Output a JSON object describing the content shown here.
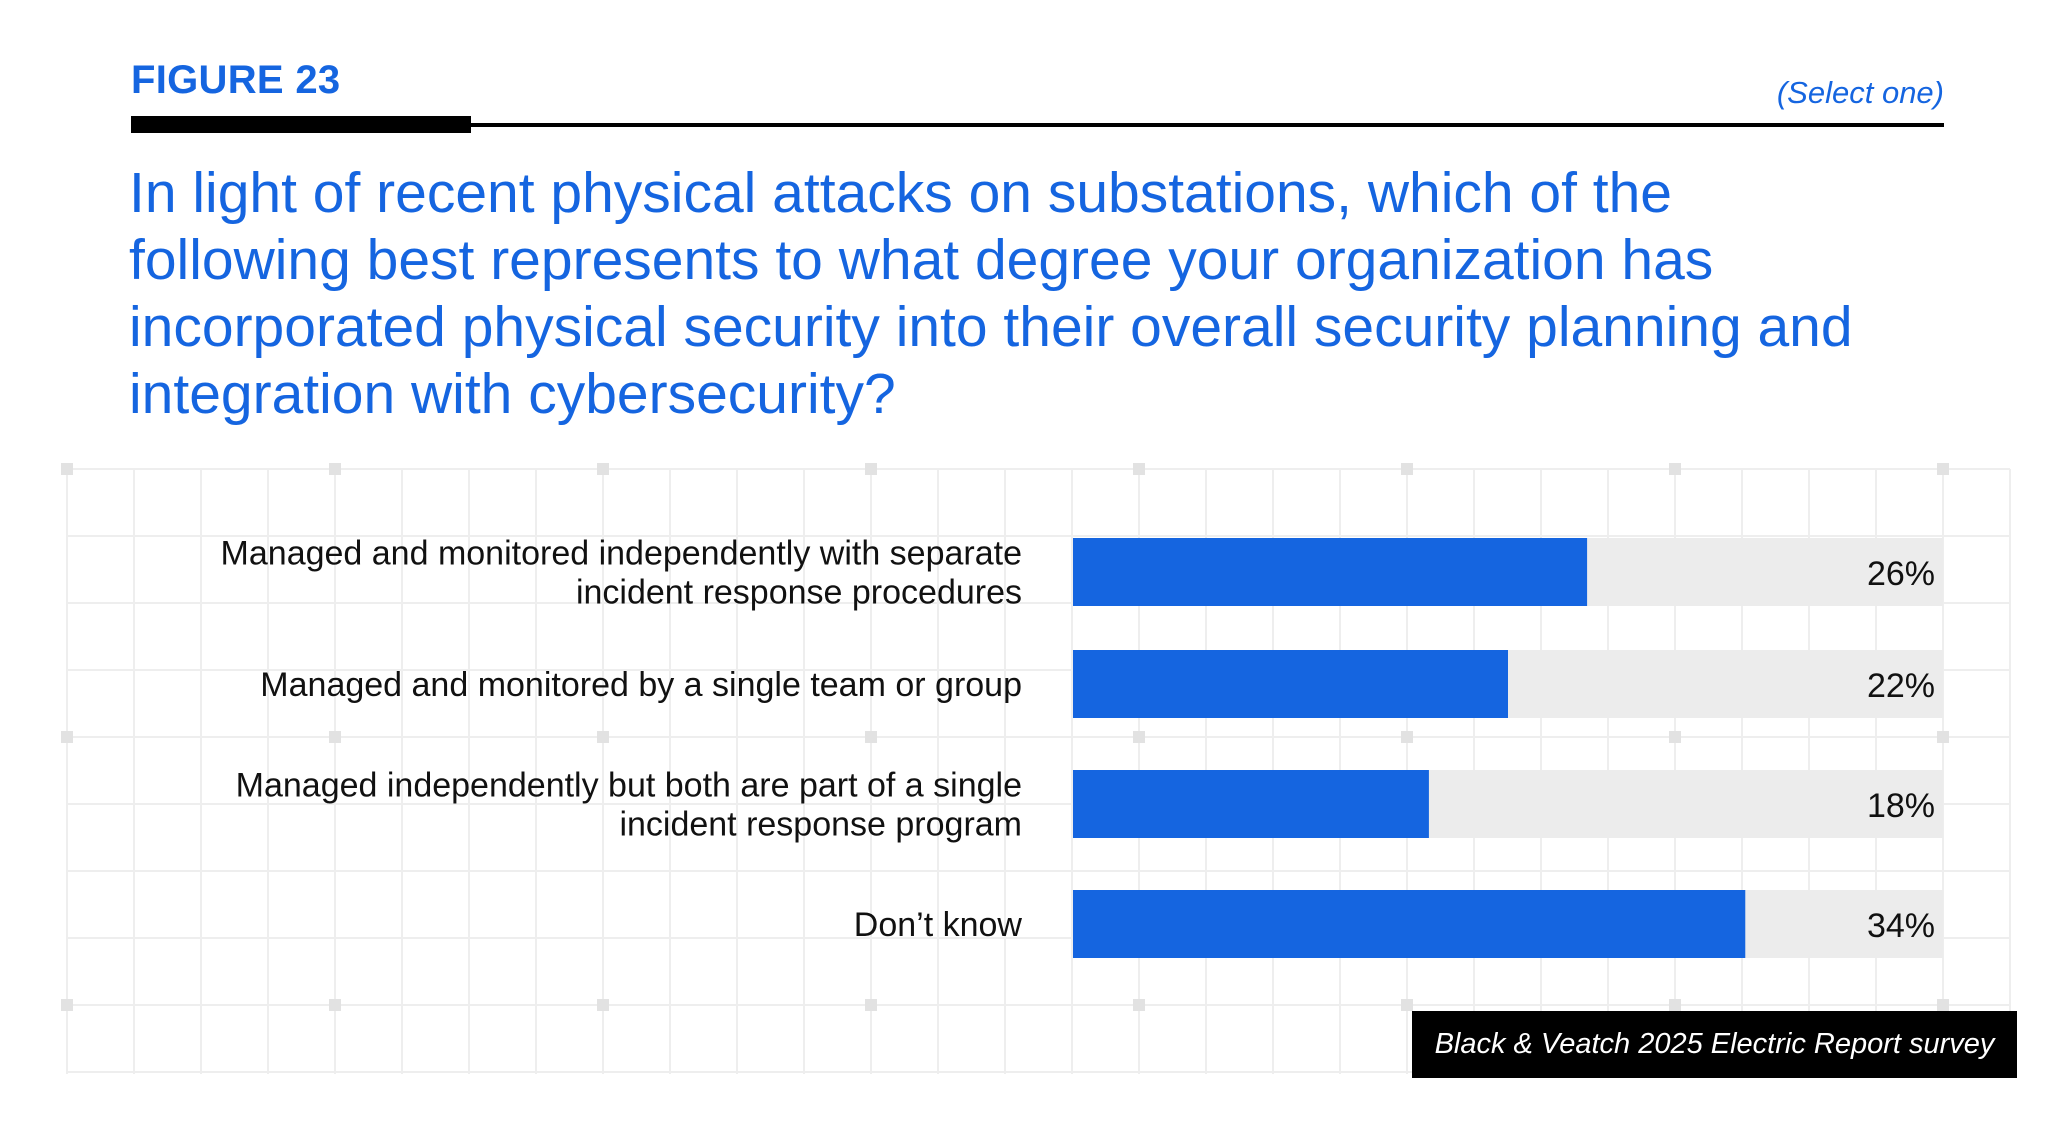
{
  "header": {
    "figure_label": "FIGURE 23",
    "select_note": "(Select one)",
    "question": "In light of recent physical attacks on substations, which of the following best represents to what degree your organization has incorporated physical security into their overall security planning and integration with cybersecurity?"
  },
  "colors": {
    "accent": "#1565e0",
    "bar_track": "#ececec",
    "text": "#111111"
  },
  "chart_data": {
    "type": "bar",
    "orientation": "horizontal",
    "categories": [
      [
        "Managed and monitored independently with separate",
        "incident response procedures"
      ],
      [
        "Managed and monitored by a single team or group"
      ],
      [
        "Managed independently but both are part of a single",
        "incident response program"
      ],
      [
        "Don’t know"
      ]
    ],
    "values": [
      26,
      22,
      18,
      34
    ],
    "value_labels": [
      "26%",
      "22%",
      "18%",
      "34%"
    ],
    "unit": "%",
    "xlim": [
      0,
      44
    ],
    "grid": true
  },
  "source": "Black & Veatch 2025 Electric Report survey"
}
